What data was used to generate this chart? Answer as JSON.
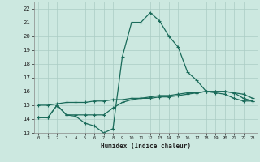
{
  "title": "",
  "xlabel": "Humidex (Indice chaleur)",
  "bg_color": "#cce8e0",
  "grid_color": "#aaccc4",
  "line_color": "#1a6b5a",
  "xlim": [
    -0.5,
    23.5
  ],
  "ylim": [
    13,
    22.5
  ],
  "xticks": [
    0,
    1,
    2,
    3,
    4,
    5,
    6,
    7,
    8,
    9,
    10,
    11,
    12,
    13,
    14,
    15,
    16,
    17,
    18,
    19,
    20,
    21,
    22,
    23
  ],
  "yticks": [
    13,
    14,
    15,
    16,
    17,
    18,
    19,
    20,
    21,
    22
  ],
  "series1_x": [
    0,
    1,
    2,
    3,
    4,
    5,
    6,
    7,
    8,
    9,
    10,
    11,
    12,
    13,
    14,
    15,
    16,
    17,
    18,
    19,
    20,
    21,
    22,
    23
  ],
  "series1_y": [
    14.1,
    14.1,
    15.0,
    14.3,
    14.2,
    13.7,
    13.5,
    13.0,
    13.3,
    18.5,
    21.0,
    21.0,
    21.7,
    21.1,
    20.0,
    19.2,
    17.4,
    16.8,
    16.0,
    15.9,
    15.8,
    15.5,
    15.3,
    15.3
  ],
  "series2_x": [
    0,
    1,
    2,
    3,
    4,
    5,
    6,
    7,
    8,
    9,
    10,
    11,
    12,
    13,
    14,
    15,
    16,
    17,
    18,
    19,
    20,
    21,
    22,
    23
  ],
  "series2_y": [
    15.0,
    15.0,
    15.1,
    15.2,
    15.2,
    15.2,
    15.3,
    15.3,
    15.4,
    15.4,
    15.5,
    15.5,
    15.5,
    15.6,
    15.6,
    15.7,
    15.8,
    15.9,
    16.0,
    16.0,
    16.0,
    15.9,
    15.8,
    15.5
  ],
  "series3_x": [
    0,
    1,
    2,
    3,
    4,
    5,
    6,
    7,
    8,
    9,
    10,
    11,
    12,
    13,
    14,
    15,
    16,
    17,
    18,
    19,
    20,
    21,
    22,
    23
  ],
  "series3_y": [
    14.1,
    14.1,
    15.0,
    14.3,
    14.3,
    14.3,
    14.3,
    14.3,
    14.8,
    15.2,
    15.4,
    15.5,
    15.6,
    15.7,
    15.7,
    15.8,
    15.9,
    15.9,
    16.0,
    16.0,
    16.0,
    15.9,
    15.5,
    15.3
  ]
}
